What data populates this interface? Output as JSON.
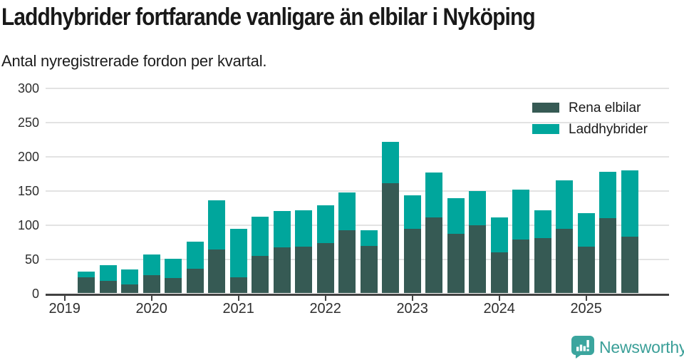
{
  "header": {
    "title": "Laddhybrider fortfarande vanligare än elbilar i Nyköping",
    "subtitle": "Antal nyregistrerade fordon per kvartal."
  },
  "footer": {
    "brand": "Newsworthy",
    "brand_color": "#3a9f98",
    "logo_color": "#3ba59e"
  },
  "chart_data": {
    "type": "bar",
    "stacked": true,
    "title": "Laddhybrider fortfarande vanligare än elbilar i Nyköping",
    "subtitle_note": "Antal nyregistrerade fordon per kvartal.",
    "x": [
      "2019Q2",
      "2019Q3",
      "2019Q4",
      "2020Q1",
      "2020Q2",
      "2020Q3",
      "2020Q4",
      "2021Q1",
      "2021Q2",
      "2021Q3",
      "2021Q4",
      "2022Q1",
      "2022Q2",
      "2022Q3",
      "2022Q4",
      "2023Q1",
      "2023Q2",
      "2023Q3",
      "2023Q4",
      "2024Q1",
      "2024Q2",
      "2024Q3",
      "2024Q4",
      "2025Q1",
      "2025Q2",
      "2025Q3"
    ],
    "first_quarter_offset": 1,
    "series": [
      {
        "name": "Rena elbilar",
        "color": "#365a54",
        "values": [
          24,
          18,
          13,
          27,
          22,
          36,
          64,
          23,
          55,
          67,
          68,
          74,
          92,
          69,
          161,
          95,
          111,
          87,
          100,
          60,
          79,
          81,
          94,
          68,
          110,
          83
        ]
      },
      {
        "name": "Laddhybrider",
        "color": "#00a69c",
        "values": [
          8,
          23,
          22,
          30,
          29,
          40,
          72,
          71,
          57,
          54,
          54,
          55,
          56,
          23,
          61,
          49,
          66,
          52,
          50,
          51,
          73,
          41,
          72,
          49,
          68,
          97
        ]
      }
    ],
    "x_tick_labels": [
      "2019",
      "2020",
      "2021",
      "2022",
      "2023",
      "2024",
      "2025"
    ],
    "yticks": [
      0,
      50,
      100,
      150,
      200,
      250,
      300
    ],
    "ylim": [
      0,
      300
    ],
    "grid": true,
    "legend_position": "top-right",
    "gridline_color": "#e3e3e3",
    "axis_color": "#424242"
  }
}
